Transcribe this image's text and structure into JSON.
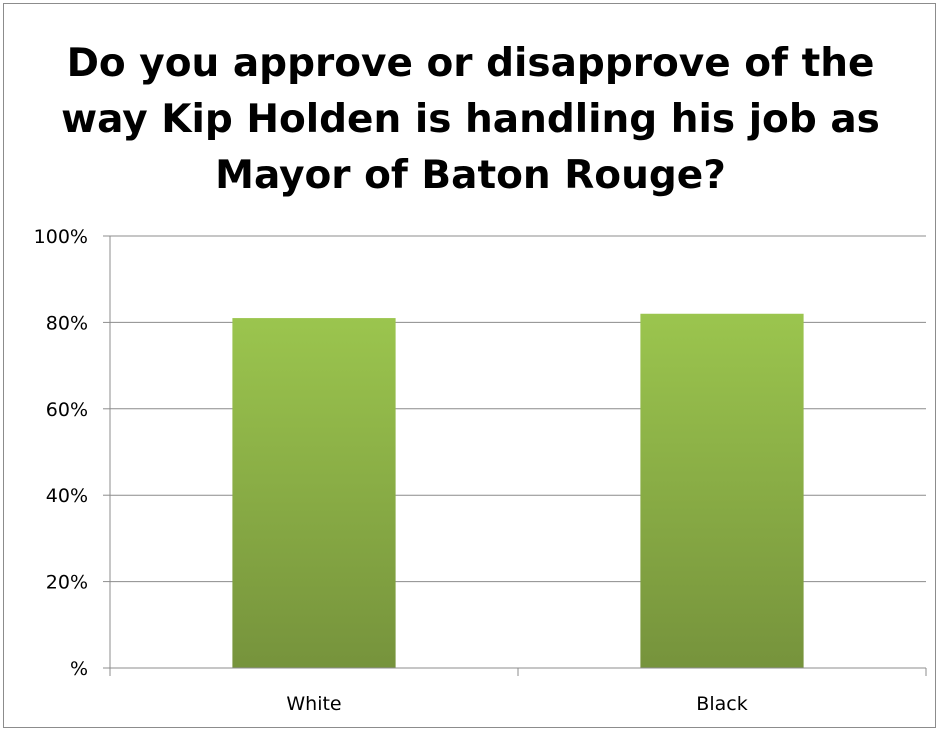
{
  "chart_data": {
    "type": "bar",
    "title": "Do you approve or disapprove of the way Kip Holden is handling his job as Mayor of Baton Rouge?",
    "title_lines": [
      "Do you approve or disapprove of the",
      "way Kip Holden is handling his job as",
      "Mayor of Baton Rouge?"
    ],
    "categories": [
      "White",
      "Black"
    ],
    "series": [
      {
        "values": [
          81,
          82
        ]
      }
    ],
    "ylim": [
      0,
      100
    ],
    "yticks": [
      0,
      20,
      40,
      60,
      80,
      100
    ],
    "ytick_labels": [
      "%",
      "20%",
      "40%",
      "60%",
      "80%",
      "100%"
    ],
    "xlabel": "",
    "ylabel": "",
    "grid": true,
    "legend": "none",
    "colors": {
      "bar_top": "#9bc54e",
      "bar_bottom": "#76933c",
      "gridline": "#8c8c8c",
      "axis": "#8c8c8c"
    }
  }
}
